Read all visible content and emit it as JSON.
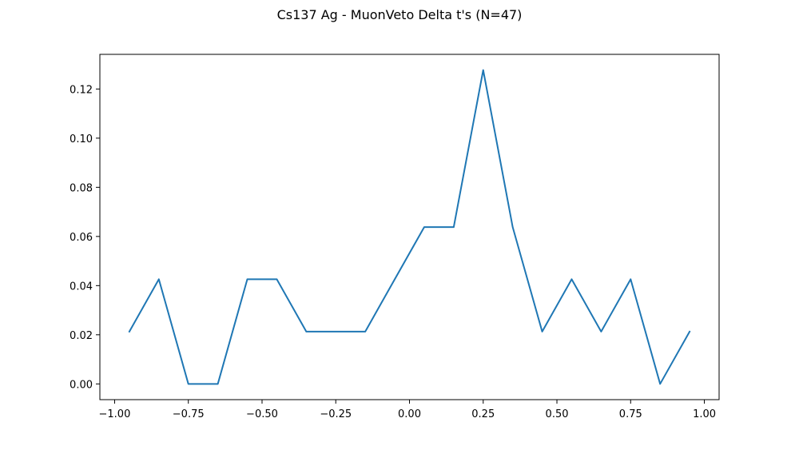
{
  "chart_data": {
    "type": "line",
    "title": "Cs137 Ag - MuonVeto Delta t's (N=47)",
    "xlabel": "",
    "ylabel": "",
    "xlim": [
      -1.05,
      1.05
    ],
    "ylim": [
      -0.0064,
      0.1341
    ],
    "xticks": [
      -1.0,
      -0.75,
      -0.5,
      -0.25,
      0.0,
      0.25,
      0.5,
      0.75,
      1.0
    ],
    "xtick_labels": [
      "−1.00",
      "−0.75",
      "−0.50",
      "−0.25",
      "0.00",
      "0.25",
      "0.50",
      "0.75",
      "1.00"
    ],
    "yticks": [
      0.0,
      0.02,
      0.04,
      0.06,
      0.08,
      0.1,
      0.12
    ],
    "ytick_labels": [
      "0.00",
      "0.02",
      "0.04",
      "0.06",
      "0.08",
      "0.10",
      "0.12"
    ],
    "grid": false,
    "series": [
      {
        "color": "#1f77b4",
        "x": [
          -0.95,
          -0.85,
          -0.75,
          -0.65,
          -0.55,
          -0.45,
          -0.35,
          -0.25,
          -0.15,
          -0.05,
          0.05,
          0.15,
          0.25,
          0.35,
          0.45,
          0.55,
          0.65,
          0.75,
          0.85,
          0.95
        ],
        "y": [
          0.0213,
          0.0426,
          0.0,
          0.0,
          0.0426,
          0.0426,
          0.0213,
          0.0213,
          0.0213,
          0.0426,
          0.0638,
          0.0638,
          0.1277,
          0.0638,
          0.0213,
          0.0426,
          0.0213,
          0.0426,
          0.0,
          0.0213
        ]
      }
    ]
  }
}
